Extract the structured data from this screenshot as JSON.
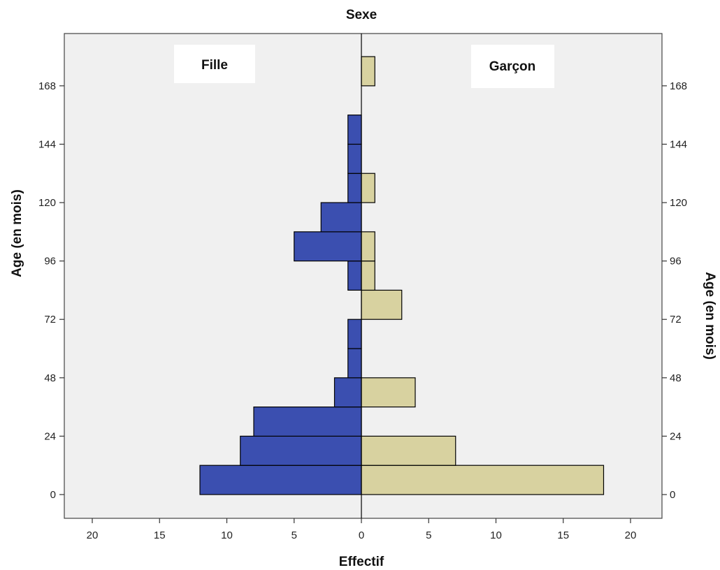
{
  "chart_data": {
    "type": "bar",
    "title": "Sexe",
    "xlabel": "Effectif",
    "ylabel": "Age (en mois)",
    "ylabel_right": "Age (en mois)",
    "bin_width": 12,
    "bin_starts": [
      0,
      12,
      24,
      36,
      48,
      60,
      72,
      84,
      96,
      108,
      120,
      132,
      144,
      156,
      168
    ],
    "y_ticks": [
      0,
      24,
      48,
      72,
      96,
      120,
      144,
      168
    ],
    "ylim": [
      -10,
      184
    ],
    "x_ticks_left": [
      20,
      15,
      10,
      5
    ],
    "x_ticks_right": [
      0,
      5,
      10,
      15,
      20
    ],
    "xlim": [
      -22,
      22
    ],
    "series": [
      {
        "name": "Fille",
        "color": "#3b4fb0",
        "values": [
          12,
          9,
          8,
          2,
          1,
          1,
          0,
          1,
          5,
          3,
          1,
          1,
          1,
          0,
          0
        ]
      },
      {
        "name": "Garçon",
        "color": "#d8d2a0",
        "values": [
          18,
          7,
          0,
          4,
          0,
          0,
          3,
          1,
          1,
          0,
          1,
          0,
          0,
          0,
          1
        ]
      }
    ],
    "grid": false
  }
}
